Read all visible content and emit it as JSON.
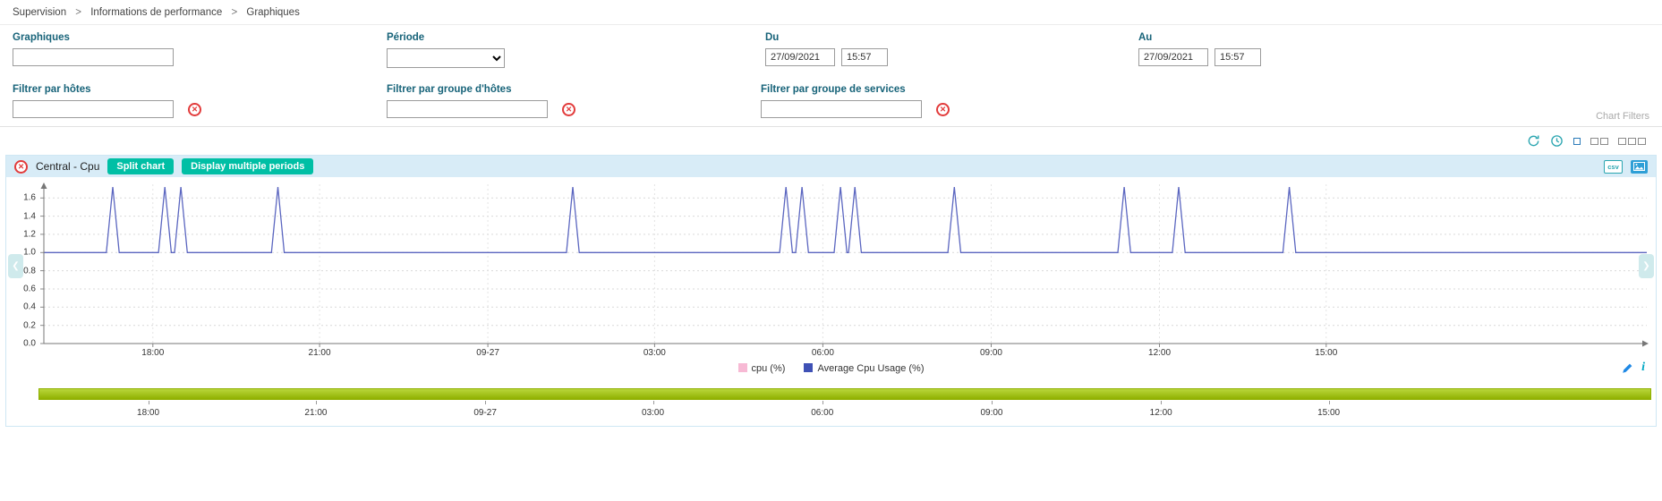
{
  "theme": {
    "label_color": "#176379",
    "link_color": "#444444",
    "btn_bg": "#00bfa5",
    "header_bg": "#d8ecf7",
    "red": "#e23b3b",
    "icon_teal": "#2aa5b0",
    "export_blue": "#2e9fd6",
    "pencil_color": "#1e88e5",
    "info_color": "#00a7c4",
    "tl_top": "#b9d63a",
    "tl_bottom": "#8fb000"
  },
  "breadcrumb": {
    "separator": ">",
    "items": [
      "Supervision",
      "Informations de performance",
      "Graphiques"
    ]
  },
  "filter_panel": {
    "graphs": {
      "label": "Graphiques",
      "value": ""
    },
    "period": {
      "label": "Période",
      "value": ""
    },
    "from": {
      "label": "Du",
      "date": "27/09/2021",
      "time": "15:57"
    },
    "to": {
      "label": "Au",
      "date": "27/09/2021",
      "time": "15:57"
    },
    "host_filter": {
      "label": "Filtrer par hôtes",
      "value": ""
    },
    "hostgroup_filter": {
      "label": "Filtrer par groupe d'hôtes",
      "value": ""
    },
    "servicegroup_filter": {
      "label": "Filtrer par groupe de services",
      "value": ""
    },
    "chart_filters_caption": "Chart Filters"
  },
  "icons": {
    "clear": "circle-x",
    "refresh": "circular-arrows",
    "history": "clock",
    "layout_small": "one-square",
    "layout_medium": "two-squares",
    "layout_large": "three-squares",
    "export_csv": "csv-badge",
    "export_image": "picture",
    "pan_left": "chevron-left",
    "pan_right": "chevron-right",
    "annotate": "pencil",
    "info": "letter-i"
  },
  "glyphs": {
    "close": "✕",
    "pan_left": "❮",
    "pan_right": "❯",
    "info": "i"
  },
  "chart_panel": {
    "title": "Central - Cpu",
    "buttons": {
      "split": "Split chart",
      "multiple_periods": "Display multiple periods"
    },
    "export": {
      "csv_label": "csv"
    }
  },
  "chart_data": {
    "type": "line",
    "title": "Central - Cpu",
    "ylim": [
      0,
      1.75
    ],
    "yticks": [
      "0.0",
      "0.2",
      "0.4",
      "0.6",
      "0.8",
      "1.0",
      "1.2",
      "1.4",
      "1.6"
    ],
    "xticks": [
      {
        "label": "18:00",
        "pos": 0.068
      },
      {
        "label": "21:00",
        "pos": 0.172
      },
      {
        "label": "09-27",
        "pos": 0.277
      },
      {
        "label": "03:00",
        "pos": 0.381
      },
      {
        "label": "06:00",
        "pos": 0.486
      },
      {
        "label": "09:00",
        "pos": 0.591
      },
      {
        "label": "12:00",
        "pos": 0.696
      },
      {
        "label": "15:00",
        "pos": 0.8
      }
    ],
    "grid": true,
    "legend_position": "bottom-center",
    "spike_half_width": 0.004,
    "series": [
      {
        "name": "cpu (%)",
        "color": "#f7b9d4"
      },
      {
        "name": "Average Cpu Usage (%)",
        "color": "#5b66c0",
        "baseline": 1.0,
        "peak": 1.72,
        "spike_positions": [
          0.043,
          0.0755,
          0.0855,
          0.146,
          0.33,
          0.463,
          0.473,
          0.497,
          0.506,
          0.568,
          0.674,
          0.708,
          0.777
        ]
      }
    ],
    "legend": [
      {
        "label": "cpu (%)",
        "color": "#f7b9d4"
      },
      {
        "label": "Average Cpu Usage (%)",
        "color": "#3f51b5"
      }
    ]
  },
  "timeline": {
    "xticks": [
      {
        "label": "18:00",
        "pos": 0.068
      },
      {
        "label": "21:00",
        "pos": 0.172
      },
      {
        "label": "09-27",
        "pos": 0.277
      },
      {
        "label": "03:00",
        "pos": 0.381
      },
      {
        "label": "06:00",
        "pos": 0.486
      },
      {
        "label": "09:00",
        "pos": 0.591
      },
      {
        "label": "12:00",
        "pos": 0.696
      },
      {
        "label": "15:00",
        "pos": 0.8
      }
    ]
  }
}
